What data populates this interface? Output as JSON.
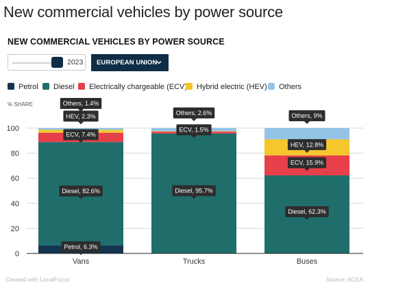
{
  "page_title": "New commercial vehicles by power source",
  "controls": {
    "year_value": "2023",
    "region_label": "EUROPEAN UNION",
    "colors": {
      "control_bg": "#0f2d46"
    }
  },
  "legend": [
    {
      "label": "Petrol",
      "color": "#15344f"
    },
    {
      "label": "Diesel",
      "color": "#1f6e6c"
    },
    {
      "label": "Electrically chargeable (ECV)",
      "color": "#e8404a"
    },
    {
      "label": "Hybrid electric (HEV)",
      "color": "#f6c62d"
    },
    {
      "label": "Others",
      "color": "#93c4e5"
    }
  ],
  "footer": {
    "left": "Created with LocalFocus",
    "right": "Source: ACEA"
  },
  "chart_data": {
    "type": "bar",
    "stacked": true,
    "title": "NEW COMMERCIAL VEHICLES BY POWER SOURCE",
    "ylabel": "% SHARE",
    "xlabel": "",
    "ylim": [
      0,
      100
    ],
    "yticks": [
      0,
      20,
      40,
      60,
      80,
      100
    ],
    "grid": true,
    "legend_position": "top-left",
    "categories": [
      "Vans",
      "Trucks",
      "Buses"
    ],
    "series": [
      {
        "name": "Petrol",
        "color": "#15344f",
        "values": [
          6.3,
          0.0,
          0.0
        ]
      },
      {
        "name": "Diesel",
        "color": "#1f6e6c",
        "values": [
          82.6,
          95.7,
          62.3
        ]
      },
      {
        "name": "Electrically chargeable (ECV)",
        "color": "#e8404a",
        "values": [
          7.4,
          1.5,
          15.9
        ]
      },
      {
        "name": "Hybrid electric (HEV)",
        "color": "#f6c62d",
        "values": [
          2.3,
          0.3,
          12.8
        ]
      },
      {
        "name": "Others",
        "color": "#93c4e5",
        "values": [
          1.4,
          2.6,
          9.0
        ]
      }
    ],
    "annotations": [
      {
        "category": "Vans",
        "series": "Petrol",
        "text": "Petrol, 6.3%"
      },
      {
        "category": "Vans",
        "series": "Diesel",
        "text": "Diesel, 82.6%"
      },
      {
        "category": "Vans",
        "series": "Electrically chargeable (ECV)",
        "text": "ECV, 7.4%"
      },
      {
        "category": "Vans",
        "series": "Hybrid electric (HEV)",
        "text": "HEV, 2.3%"
      },
      {
        "category": "Vans",
        "series": "Others",
        "text": "Others, 1.4%"
      },
      {
        "category": "Trucks",
        "series": "Diesel",
        "text": "Diesel, 95.7%"
      },
      {
        "category": "Trucks",
        "series": "Electrically chargeable (ECV)",
        "text": "ECV, 1.5%"
      },
      {
        "category": "Trucks",
        "series": "Others",
        "text": "Others, 2.6%"
      },
      {
        "category": "Buses",
        "series": "Diesel",
        "text": "Diesel, 62.3%"
      },
      {
        "category": "Buses",
        "series": "Electrically chargeable (ECV)",
        "text": "ECV, 15.9%"
      },
      {
        "category": "Buses",
        "series": "Hybrid electric (HEV)",
        "text": "HEV, 12.8%"
      },
      {
        "category": "Buses",
        "series": "Others",
        "text": "Others, 9%"
      }
    ]
  }
}
